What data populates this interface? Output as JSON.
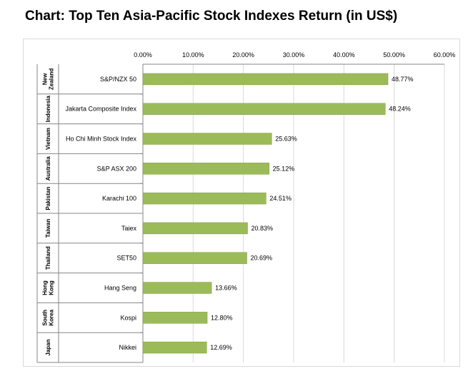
{
  "title": "Chart: Top Ten Asia-Pacific Stock Indexes Return (in US$)",
  "chart_data": {
    "type": "bar",
    "orientation": "horizontal",
    "title": "Chart: Top Ten Asia-Pacific Stock Indexes Return (in US$)",
    "xlim": [
      0,
      60
    ],
    "xticks": [
      "0.00%",
      "10.00%",
      "20.00%",
      "30.00%",
      "40.00%",
      "50.00%",
      "60.00%"
    ],
    "grid": true,
    "bar_color": "#9bbb59",
    "rows": [
      {
        "group": [
          "New",
          "Zealand"
        ],
        "category": "S&P/NZX 50",
        "value": 48.77,
        "label": "48.77%"
      },
      {
        "group": [
          "Indonesia"
        ],
        "category": "Jakarta Composite Index",
        "value": 48.24,
        "label": "48.24%"
      },
      {
        "group": [
          "Vietnam"
        ],
        "category": "Ho Chi Minh Stock Index",
        "value": 25.63,
        "label": "25.63%"
      },
      {
        "group": [
          "Australia"
        ],
        "category": "S&P ASX 200",
        "value": 25.12,
        "label": "25.12%"
      },
      {
        "group": [
          "Pakistan"
        ],
        "category": "Karachi 100",
        "value": 24.51,
        "label": "24.51%"
      },
      {
        "group": [
          "Taiwan"
        ],
        "category": "Taiex",
        "value": 20.83,
        "label": "20.83%"
      },
      {
        "group": [
          "Thailand"
        ],
        "category": "SET50",
        "value": 20.69,
        "label": "20.69%"
      },
      {
        "group": [
          "Hong",
          "Kong"
        ],
        "category": "Hang Seng",
        "value": 13.66,
        "label": "13.66%"
      },
      {
        "group": [
          "South",
          "Korea"
        ],
        "category": "Kospi",
        "value": 12.8,
        "label": "12.80%"
      },
      {
        "group": [
          "Japan"
        ],
        "category": "Nikkei",
        "value": 12.69,
        "label": "12.69%"
      }
    ]
  }
}
